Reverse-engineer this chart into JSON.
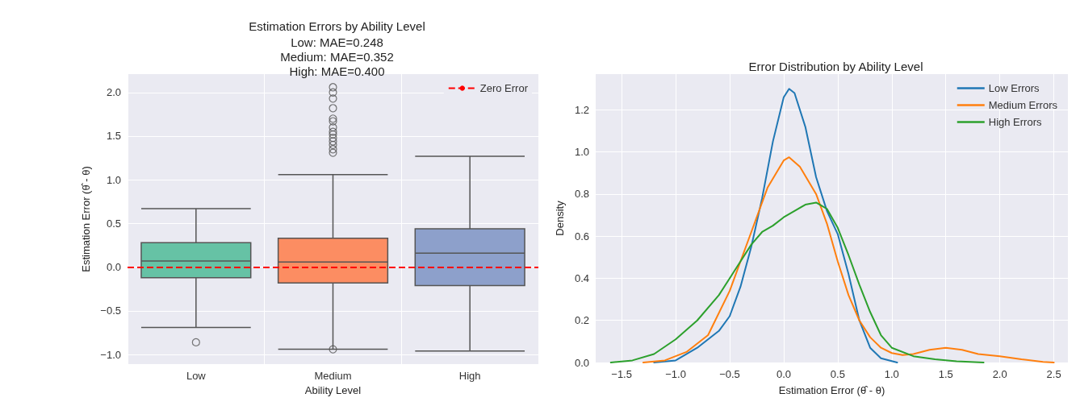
{
  "chart_data": [
    {
      "type": "box",
      "title": "Estimation Errors by Ability Level",
      "subtitle": "Low: MAE=0.248\nMedium: MAE=0.352\nHigh: MAE=0.400",
      "xlabel": "Ability Level",
      "ylabel": "Estimation Error (θ̂ - θ)",
      "categories": [
        "Low",
        "Medium",
        "High"
      ],
      "colors": [
        "#66c2a5",
        "#fc8d62",
        "#8da0cb"
      ],
      "boxes": [
        {
          "low": -0.69,
          "q1": -0.12,
          "median": 0.07,
          "q3": 0.28,
          "high": 0.67,
          "outliers": [
            -0.86
          ]
        },
        {
          "low": -0.94,
          "q1": -0.18,
          "median": 0.06,
          "q3": 0.33,
          "high": 1.06,
          "outliers": [
            -0.94,
            1.31,
            1.35,
            1.4,
            1.44,
            1.48,
            1.52,
            1.55,
            1.6,
            1.67,
            1.7,
            1.82,
            1.93,
            2.0,
            2.06
          ]
        },
        {
          "low": -0.96,
          "q1": -0.21,
          "median": 0.16,
          "q3": 0.44,
          "high": 1.27
        }
      ],
      "ylim": [
        -1.11,
        2.21
      ],
      "yticks": [
        {
          "value": -1,
          "label": "−1.0"
        },
        {
          "value": -0.5,
          "label": "−0.5"
        },
        {
          "value": 0,
          "label": "0.0"
        },
        {
          "value": 0.5,
          "label": "0.5"
        },
        {
          "value": 1,
          "label": "1.0"
        },
        {
          "value": 1.5,
          "label": "1.5"
        },
        {
          "value": 2,
          "label": "2.0"
        }
      ],
      "ref_lines": [
        {
          "axis": "y",
          "value": 0,
          "label": "Zero Error",
          "color": "#ff0000",
          "line_style": "dashed"
        }
      ],
      "legend": "top right",
      "grid": true
    },
    {
      "type": "line",
      "title": "Error Distribution by Ability Level",
      "xlabel": "Estimation Error (θ̂ - θ)",
      "ylabel": "Density",
      "series": [
        {
          "name": "Low Errors",
          "color": "#1f77b4",
          "x": [
            -1.2,
            -1.0,
            -0.8,
            -0.6,
            -0.5,
            -0.4,
            -0.3,
            -0.2,
            -0.1,
            0.0,
            0.05,
            0.1,
            0.2,
            0.3,
            0.4,
            0.5,
            0.6,
            0.7,
            0.8,
            0.9,
            1.05
          ],
          "values": [
            0.0,
            0.01,
            0.07,
            0.15,
            0.22,
            0.36,
            0.55,
            0.78,
            1.05,
            1.26,
            1.3,
            1.28,
            1.12,
            0.88,
            0.72,
            0.61,
            0.42,
            0.2,
            0.07,
            0.02,
            0.0
          ]
        },
        {
          "name": "Medium Errors",
          "color": "#ff7f0e",
          "x": [
            -1.3,
            -1.1,
            -0.9,
            -0.7,
            -0.5,
            -0.3,
            -0.15,
            0.0,
            0.05,
            0.15,
            0.3,
            0.4,
            0.5,
            0.6,
            0.7,
            0.8,
            0.9,
            1.0,
            1.1,
            1.2,
            1.35,
            1.5,
            1.65,
            1.8,
            2.0,
            2.2,
            2.4,
            2.5
          ],
          "values": [
            0.0,
            0.01,
            0.05,
            0.13,
            0.34,
            0.62,
            0.83,
            0.96,
            0.975,
            0.93,
            0.8,
            0.66,
            0.48,
            0.32,
            0.2,
            0.12,
            0.07,
            0.045,
            0.035,
            0.04,
            0.06,
            0.07,
            0.06,
            0.04,
            0.03,
            0.015,
            0.003,
            0.0
          ]
        },
        {
          "name": "High Errors",
          "color": "#2ca02c",
          "x": [
            -1.6,
            -1.4,
            -1.2,
            -1.0,
            -0.8,
            -0.6,
            -0.5,
            -0.4,
            -0.3,
            -0.2,
            -0.1,
            0.0,
            0.1,
            0.2,
            0.3,
            0.4,
            0.5,
            0.6,
            0.7,
            0.8,
            0.9,
            1.0,
            1.2,
            1.4,
            1.6,
            1.85
          ],
          "values": [
            0.0,
            0.01,
            0.04,
            0.11,
            0.2,
            0.32,
            0.4,
            0.48,
            0.56,
            0.62,
            0.65,
            0.69,
            0.72,
            0.75,
            0.76,
            0.73,
            0.64,
            0.51,
            0.37,
            0.24,
            0.13,
            0.07,
            0.03,
            0.015,
            0.006,
            0.0
          ]
        }
      ],
      "xlim": [
        -1.74,
        2.63
      ],
      "xticks": [
        {
          "value": -1.5,
          "label": "−1.5"
        },
        {
          "value": -1,
          "label": "−1.0"
        },
        {
          "value": -0.5,
          "label": "−0.5"
        },
        {
          "value": 0,
          "label": "0.0"
        },
        {
          "value": 0.5,
          "label": "0.5"
        },
        {
          "value": 1,
          "label": "1.0"
        },
        {
          "value": 1.5,
          "label": "1.5"
        },
        {
          "value": 2,
          "label": "2.0"
        },
        {
          "value": 2.5,
          "label": "2.5"
        }
      ],
      "ylim": [
        0,
        1.37
      ],
      "yticks": [
        {
          "value": 0,
          "label": "0.0"
        },
        {
          "value": 0.2,
          "label": "0.2"
        },
        {
          "value": 0.4,
          "label": "0.4"
        },
        {
          "value": 0.6,
          "label": "0.6"
        },
        {
          "value": 0.8,
          "label": "0.8"
        },
        {
          "value": 1,
          "label": "1.0"
        },
        {
          "value": 1.2,
          "label": "1.2"
        }
      ],
      "legend": "top right",
      "grid": true
    }
  ]
}
